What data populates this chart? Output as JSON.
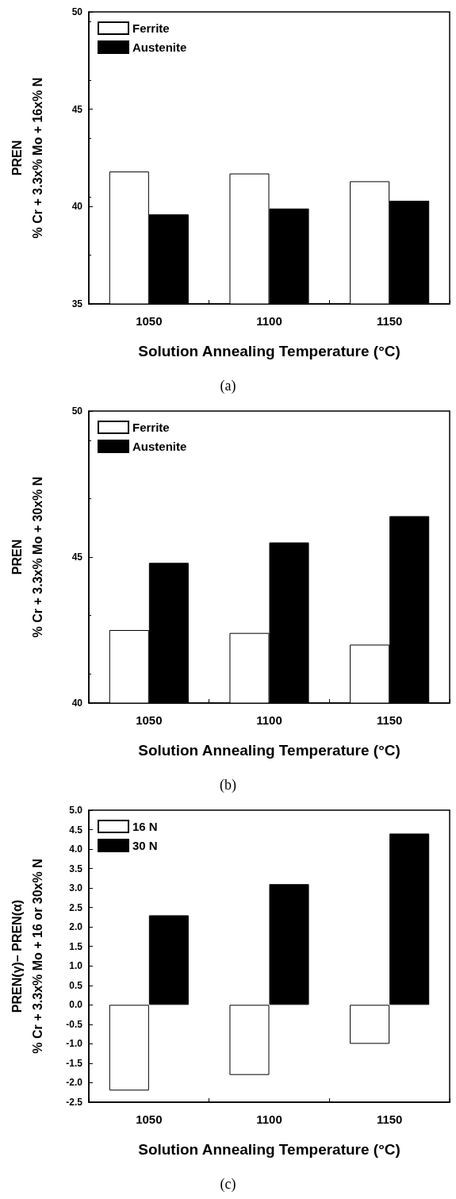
{
  "chart_data": [
    {
      "type": "bar",
      "categories": [
        "1050",
        "1100",
        "1150"
      ],
      "xlabel": "Solution Annealing Temperature (°C)",
      "ylabel": "PREN\n% Cr + 3.3x% Mo + 16x% N",
      "ylim": [
        35,
        50
      ],
      "yticks": [
        35,
        40,
        45,
        50
      ],
      "grid": false,
      "legend": "top left",
      "annotations": [
        "(a)"
      ],
      "series": [
        {
          "name": "Ferrite",
          "color": "#ffffff",
          "values": [
            41.8,
            41.7,
            41.3
          ]
        },
        {
          "name": "Austenite",
          "color": "#000000",
          "values": [
            39.6,
            39.9,
            40.3
          ]
        }
      ]
    },
    {
      "type": "bar",
      "categories": [
        "1050",
        "1100",
        "1150"
      ],
      "xlabel": "Solution Annealing Temperature (°C)",
      "ylabel": "PREN\n% Cr + 3.3x% Mo + 30x% N",
      "ylim": [
        40,
        50
      ],
      "yticks": [
        40,
        45,
        50
      ],
      "grid": false,
      "legend": "top left",
      "annotations": [
        "(b)"
      ],
      "series": [
        {
          "name": "Ferrite",
          "color": "#ffffff",
          "values": [
            42.5,
            42.4,
            42.0
          ]
        },
        {
          "name": "Austenite",
          "color": "#000000",
          "values": [
            44.8,
            45.5,
            46.4
          ]
        }
      ]
    },
    {
      "type": "bar",
      "categories": [
        "1050",
        "1100",
        "1150"
      ],
      "xlabel": "Solution Annealing Temperature (°C)",
      "ylabel": "PREN(γ)– PREN(α)\n% Cr + 3.3x% Mo + 16 or 30x% N",
      "ylim": [
        -2.5,
        5
      ],
      "yticks": [
        {
          "value": -2.5,
          "label": "-2.5"
        },
        {
          "value": -2,
          "label": "-2.0"
        },
        {
          "value": -1.5,
          "label": "-1.5"
        },
        {
          "value": -1,
          "label": "-1.0"
        },
        {
          "value": -0.5,
          "label": "-0.5"
        },
        {
          "value": 0,
          "label": "0.0"
        },
        {
          "value": 0.5,
          "label": "0.5"
        },
        {
          "value": 1,
          "label": "1.0"
        },
        {
          "value": 1.5,
          "label": "1.5"
        },
        {
          "value": 2,
          "label": "2.0"
        },
        {
          "value": 2.5,
          "label": "2.5"
        },
        {
          "value": 3,
          "label": "3.0"
        },
        {
          "value": 3.5,
          "label": "3.5"
        },
        {
          "value": 4,
          "label": "4.0"
        },
        {
          "value": 4.5,
          "label": "4.5"
        },
        {
          "value": 5,
          "label": "5.0"
        }
      ],
      "grid": false,
      "legend": "top left",
      "annotations": [
        "(c)"
      ],
      "series": [
        {
          "name": "16 N",
          "color": "#ffffff",
          "values": [
            -2.2,
            -1.8,
            -1.0
          ]
        },
        {
          "name": "30 N",
          "color": "#000000",
          "values": [
            2.3,
            3.1,
            4.4
          ]
        }
      ]
    }
  ]
}
